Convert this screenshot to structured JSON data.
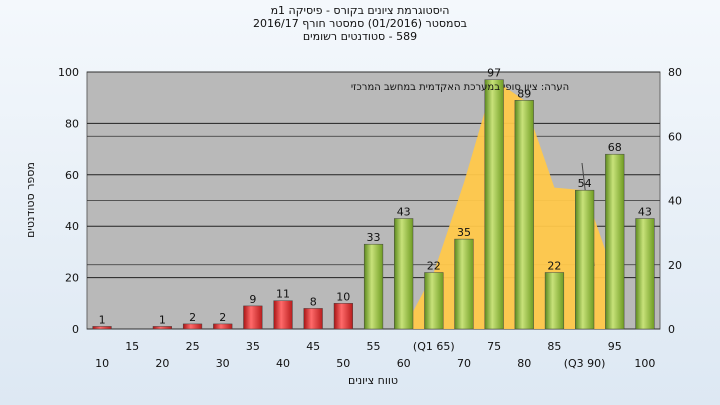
{
  "header": {
    "title": "היסטוגרמת ציונים בקורס - פיסיקה 1מ",
    "subtitle": "בסמסטר (01/2016) סמסטר חורף 2016/17",
    "registered": "589 - סטודנטים רשומים"
  },
  "chart_data": {
    "type": "bar",
    "title": "היסטוגרמת ציונים בקורס - פיסיקה 1מ",
    "xlabel": "טווח ציונים",
    "ylabel": "מספר סטודנטים",
    "note": "הערה: ציון סופי במערכת האקדמית במחשב המרכזי",
    "ylim": [
      0,
      100
    ],
    "y2lim": [
      0,
      80
    ],
    "y_ticks": [
      0,
      20,
      40,
      60,
      80,
      100
    ],
    "y2_ticks": [
      0,
      20,
      40,
      60,
      80
    ],
    "categories": [
      "10",
      "15",
      "20",
      "25",
      "30",
      "35",
      "40",
      "45",
      "50",
      "55",
      "60",
      "65",
      "70",
      "75",
      "80",
      "85",
      "90",
      "95",
      "100"
    ],
    "tick_labels_row1": [
      "",
      "15",
      "",
      "25",
      "",
      "35",
      "",
      "45",
      "",
      "55",
      "",
      "(Q1 65)",
      "",
      "75",
      "",
      "85",
      "",
      "95",
      ""
    ],
    "tick_labels_row2": [
      "10",
      "",
      "20",
      "",
      "30",
      "",
      "40",
      "",
      "50",
      "",
      "60",
      "",
      "70",
      "",
      "80",
      "",
      "(Q3 90)",
      "",
      "100"
    ],
    "values": [
      1,
      0,
      1,
      2,
      2,
      9,
      11,
      8,
      10,
      33,
      43,
      22,
      35,
      97,
      89,
      22,
      54,
      68,
      43
    ],
    "data_labels": [
      "1",
      "",
      "1",
      "2",
      "2",
      "9",
      "11",
      "8",
      "10",
      "33",
      "43",
      "22",
      "35",
      "97",
      "89",
      "22",
      "54",
      "68",
      "43"
    ],
    "bar_color_fail": "#e03030",
    "bar_color_pass": "#96c23c",
    "area_color": "#ffc84a",
    "plot_background": "#b9b9b9",
    "grid": true,
    "legend": "none"
  }
}
